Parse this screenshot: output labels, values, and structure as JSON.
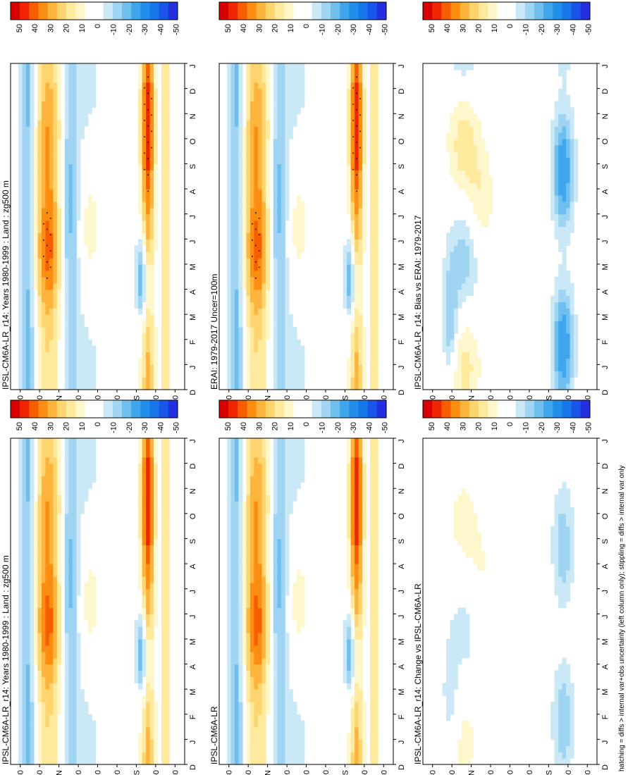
{
  "footnote": "hatching = diffs > internal var+obs uncertainty (left column only); stippling = diffs > internal var only",
  "chart_data": [
    {
      "type": "heatmap",
      "title": "IPSL-CM6A-LR_r14: Years 1980-1999 : Land : zg500 m",
      "x_ticks": [
        "D",
        "J",
        "F",
        "M",
        "A",
        "M",
        "J",
        "J",
        "A",
        "S",
        "O",
        "N",
        "D",
        "J"
      ],
      "y_ticks": [
        "80",
        "60",
        "°N",
        "20",
        "0",
        "20",
        "°S",
        "60",
        "80"
      ],
      "legend_labels": [
        "50",
        "40",
        "30",
        "20",
        "10",
        "0",
        "-10",
        "-20",
        "-30",
        "-40",
        "-50"
      ],
      "legend_colors": [
        "#d90000",
        "#ef2600",
        "#f75e00",
        "#fb8d10",
        "#fdb43c",
        "#fed46e",
        "#fee99c",
        "#fff7cc",
        "#ffffff",
        "#ffffff",
        "#cbe8f7",
        "#9fd5f2",
        "#6fbfee",
        "#3fa6ec",
        "#218eea",
        "#1776ea",
        "#1a55ea",
        "#2430e0"
      ],
      "zlim": [
        -50,
        50
      ],
      "stipple": true
    },
    {
      "type": "heatmap",
      "title": "IPSL-CM6A-LR_r14: Years 1980-1999 : Land : zg500 m",
      "x_ticks": [
        "D",
        "J",
        "F",
        "M",
        "A",
        "M",
        "J",
        "J",
        "A",
        "S",
        "O",
        "N",
        "D",
        "J"
      ],
      "y_ticks": [
        "80",
        "60",
        "°N",
        "20",
        "0",
        "20",
        "°S",
        "60",
        "80"
      ],
      "legend_labels": [
        "50",
        "40",
        "30",
        "20",
        "10",
        "0",
        "-10",
        "-20",
        "-30",
        "-40",
        "-50"
      ],
      "legend_colors": [
        "#d90000",
        "#ef2600",
        "#f75e00",
        "#fb8d10",
        "#fdb43c",
        "#fed46e",
        "#fee99c",
        "#fff7cc",
        "#ffffff",
        "#ffffff",
        "#cbe8f7",
        "#9fd5f2",
        "#6fbfee",
        "#3fa6ec",
        "#218eea",
        "#1776ea",
        "#1a55ea",
        "#2430e0"
      ],
      "zlim": [
        -50,
        50
      ],
      "stipple": false
    },
    {
      "type": "heatmap",
      "title": "ERAI: 1979-2017 Uncer=100m",
      "x_ticks": [
        "D",
        "J",
        "F",
        "M",
        "A",
        "M",
        "J",
        "J",
        "A",
        "S",
        "O",
        "N",
        "D",
        "J"
      ],
      "y_ticks": [
        "80",
        "60",
        "°N",
        "20",
        "0",
        "20",
        "°S",
        "60",
        "80"
      ],
      "legend_labels": [
        "50",
        "40",
        "30",
        "20",
        "10",
        "0",
        "-10",
        "-20",
        "-30",
        "-40",
        "-50"
      ],
      "legend_colors": [
        "#d90000",
        "#ef2600",
        "#f75e00",
        "#fb8d10",
        "#fdb43c",
        "#fed46e",
        "#fee99c",
        "#fff7cc",
        "#ffffff",
        "#ffffff",
        "#cbe8f7",
        "#9fd5f2",
        "#6fbfee",
        "#3fa6ec",
        "#218eea",
        "#1776ea",
        "#1a55ea",
        "#2430e0"
      ],
      "zlim": [
        -50,
        50
      ],
      "stipple": true
    },
    {
      "type": "heatmap",
      "title": "IPSL-CM6A-LR",
      "x_ticks": [
        "D",
        "J",
        "F",
        "M",
        "A",
        "M",
        "J",
        "J",
        "A",
        "S",
        "O",
        "N",
        "D",
        "J"
      ],
      "y_ticks": [
        "80",
        "60",
        "°N",
        "20",
        "0",
        "20",
        "°S",
        "60",
        "80"
      ],
      "legend_labels": [
        "50",
        "40",
        "30",
        "20",
        "10",
        "0",
        "-10",
        "-20",
        "-30",
        "-40",
        "-50"
      ],
      "legend_colors": [
        "#d90000",
        "#ef2600",
        "#f75e00",
        "#fb8d10",
        "#fdb43c",
        "#fed46e",
        "#fee99c",
        "#fff7cc",
        "#ffffff",
        "#ffffff",
        "#cbe8f7",
        "#9fd5f2",
        "#6fbfee",
        "#3fa6ec",
        "#218eea",
        "#1776ea",
        "#1a55ea",
        "#2430e0"
      ],
      "zlim": [
        -50,
        50
      ],
      "stipple": false
    },
    {
      "type": "heatmap",
      "title": "IPSL-CM6A-LR_r14: Bias vs ERAI: 1979-2017",
      "x_ticks": [
        "D",
        "J",
        "F",
        "M",
        "A",
        "M",
        "J",
        "J",
        "A",
        "S",
        "O",
        "N",
        "D",
        "J"
      ],
      "y_ticks": [
        "80",
        "60",
        "°N",
        "20",
        "0",
        "20",
        "°S",
        "60",
        "80"
      ],
      "legend_labels": [
        "50",
        "40",
        "30",
        "20",
        "10",
        "0",
        "-10",
        "-20",
        "-30",
        "-40",
        "-50"
      ],
      "legend_colors": [
        "#d90000",
        "#ef2600",
        "#f75e00",
        "#fb8d10",
        "#fdb43c",
        "#fed46e",
        "#fee99c",
        "#fff7cc",
        "#ffffff",
        "#ffffff",
        "#cbe8f7",
        "#9fd5f2",
        "#6fbfee",
        "#3fa6ec",
        "#218eea",
        "#1776ea",
        "#1a55ea",
        "#2430e0"
      ],
      "zlim": [
        -50,
        50
      ],
      "stipple": true
    },
    {
      "type": "heatmap",
      "title": "IPSL-CM6A-LR_r14: Change vs IPSL-CM6A-LR",
      "x_ticks": [
        "D",
        "J",
        "F",
        "M",
        "A",
        "M",
        "J",
        "J",
        "A",
        "S",
        "O",
        "N",
        "D",
        "J"
      ],
      "y_ticks": [
        "80",
        "60",
        "°N",
        "20",
        "0",
        "20",
        "°S",
        "60",
        "80"
      ],
      "legend_labels": [
        "50",
        "40",
        "30",
        "20",
        "10",
        "0",
        "-10",
        "-20",
        "-30",
        "-40",
        "-50"
      ],
      "legend_colors": [
        "#d90000",
        "#ef2600",
        "#f75e00",
        "#fb8d10",
        "#fdb43c",
        "#fed46e",
        "#fee99c",
        "#fff7cc",
        "#ffffff",
        "#ffffff",
        "#cbe8f7",
        "#9fd5f2",
        "#6fbfee",
        "#3fa6ec",
        "#218eea",
        "#1776ea",
        "#1a55ea",
        "#2430e0"
      ],
      "zlim": [
        -50,
        50
      ],
      "stipple": true
    }
  ]
}
